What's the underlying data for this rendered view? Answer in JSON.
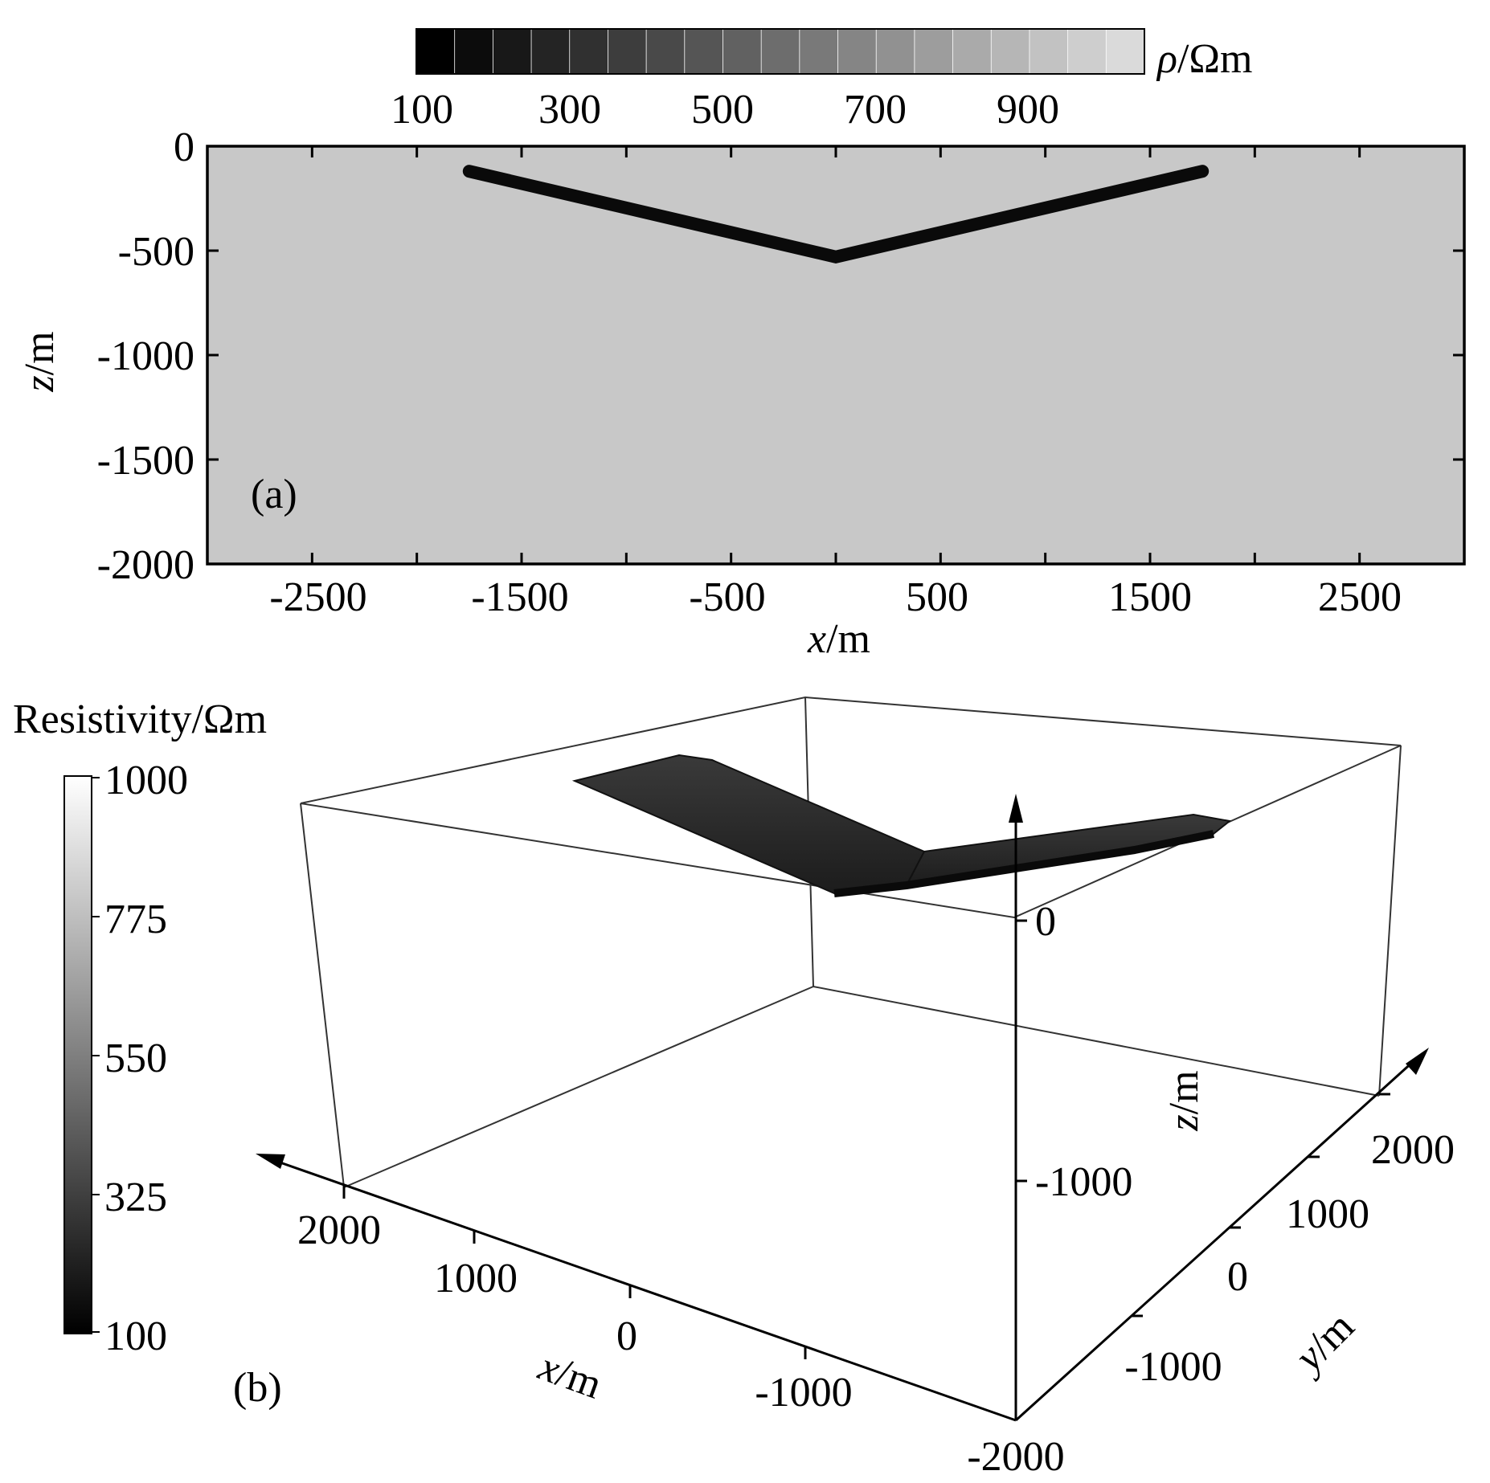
{
  "panel_a": {
    "label": "(a)",
    "colorbar": {
      "title_symbol": "ρ",
      "title_unit": "/Ωm",
      "tick_labels": [
        "100",
        "300",
        "500",
        "700",
        "900"
      ],
      "min": 100,
      "max": 1050,
      "step": 50
    }
  },
  "panel_b": {
    "label": "(b)",
    "colorbar": {
      "title": "Resistivity/Ωm",
      "tick_labels": [
        "1000",
        "775",
        "550",
        "325",
        "100"
      ],
      "min": 100,
      "max": 1000
    }
  },
  "chart_data": [
    {
      "type": "heatmap",
      "panel": "(a)",
      "x_axis": {
        "symbol": "x",
        "unit": "/m",
        "range": [
          -3000,
          3000
        ],
        "ticks": [
          -2500,
          -1500,
          -500,
          500,
          1500,
          2500
        ],
        "minor_ticks": [
          -2000,
          -1000,
          0,
          1000,
          2000
        ]
      },
      "z_axis": {
        "symbol": "z",
        "unit": "/m",
        "range": [
          -2000,
          0
        ],
        "ticks": [
          0,
          -500,
          -1000,
          -1500,
          -2000
        ]
      },
      "background_resistivity": 900,
      "anomaly": {
        "shape": "V-shaped thin conductive layer",
        "resistivity": 100,
        "vertices_x_z": [
          [
            -1750,
            -120
          ],
          [
            0,
            -530
          ],
          [
            1750,
            -120
          ]
        ],
        "thickness_m": 50
      },
      "colors": {
        "background": "#c8c8c8",
        "anomaly": "#0a0a0a"
      }
    },
    {
      "type": "3d-volume",
      "panel": "(b)",
      "x_axis": {
        "symbol": "x",
        "unit": "/m",
        "ticks": [
          2000,
          1000,
          0,
          -1000
        ]
      },
      "y_axis": {
        "symbol": "y",
        "unit": "/m",
        "ticks": [
          -1000,
          0,
          1000,
          2000
        ]
      },
      "z_axis": {
        "symbol": "z",
        "unit": "/m",
        "ticks": [
          0,
          -1000,
          -2000
        ]
      },
      "anomaly": {
        "shape": "V-shaped thin conductive layer",
        "resistivity": 100
      },
      "colors": {
        "anomaly": "#2a2a2a",
        "box": "#333333"
      }
    }
  ]
}
